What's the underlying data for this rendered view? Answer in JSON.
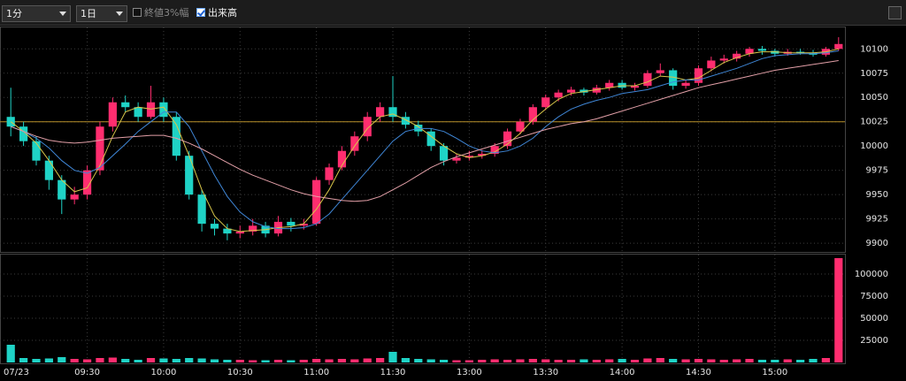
{
  "toolbar": {
    "interval": "1分",
    "range": "1日",
    "option_1": "終値3%幅",
    "option_2": "出来高"
  },
  "chart_data": [
    {
      "type": "candlestick",
      "categories": [
        "07/23",
        null,
        null,
        null,
        null,
        null,
        "09:30",
        null,
        null,
        null,
        null,
        null,
        "10:00",
        null,
        null,
        null,
        null,
        null,
        "10:30",
        null,
        null,
        null,
        null,
        null,
        "11:00",
        null,
        null,
        null,
        null,
        null,
        "11:30",
        null,
        null,
        null,
        null,
        null,
        "13:00",
        null,
        null,
        null,
        null,
        null,
        "13:30",
        null,
        null,
        null,
        null,
        null,
        "14:00",
        null,
        null,
        null,
        null,
        null,
        "14:30",
        null,
        null,
        null,
        null,
        null,
        "15:00",
        null,
        null,
        null,
        null,
        null
      ],
      "open": [
        10030,
        10020,
        10005,
        9985,
        9965,
        9945,
        9950,
        9975,
        10020,
        10045,
        10040,
        10030,
        10045,
        10030,
        9990,
        9950,
        9920,
        9915,
        9910,
        9912,
        9918,
        9910,
        9922,
        9918,
        9920,
        9965,
        9978,
        9995,
        10010,
        10030,
        10040,
        10030,
        10022,
        10015,
        10000,
        9985,
        9988,
        9990,
        9992,
        10000,
        10015,
        10025,
        10040,
        10050,
        10055,
        10058,
        10055,
        10060,
        10065,
        10060,
        10062,
        10075,
        10078,
        10062,
        10065,
        10080,
        10088,
        10090,
        10095,
        10100,
        10098,
        10095,
        10097,
        10096,
        10094,
        10100
      ],
      "high": [
        10060,
        10025,
        10010,
        9990,
        9970,
        9958,
        9980,
        10025,
        10050,
        10052,
        10045,
        10062,
        10050,
        10035,
        9995,
        9955,
        9925,
        9920,
        9918,
        9925,
        9922,
        9928,
        9926,
        9925,
        9968,
        9982,
        10000,
        10015,
        10035,
        10045,
        10072,
        10035,
        10026,
        10018,
        10003,
        9992,
        9995,
        9996,
        10003,
        10018,
        10028,
        10043,
        10053,
        10058,
        10061,
        10060,
        10063,
        10068,
        10068,
        10065,
        10078,
        10085,
        10080,
        10068,
        10083,
        10092,
        10094,
        10098,
        10102,
        10103,
        10100,
        10100,
        10100,
        10099,
        10102,
        10112
      ],
      "low": [
        10010,
        10000,
        9980,
        9955,
        9930,
        9940,
        9945,
        9970,
        10015,
        10035,
        10025,
        10028,
        10025,
        9985,
        9945,
        9912,
        9908,
        9903,
        9905,
        9908,
        9906,
        9907,
        9912,
        9914,
        9918,
        9960,
        9975,
        9990,
        10005,
        10025,
        10025,
        10018,
        10010,
        9995,
        9980,
        9982,
        9985,
        9987,
        9989,
        9997,
        10012,
        10022,
        10037,
        10046,
        10052,
        10052,
        10053,
        10057,
        10058,
        10057,
        10060,
        10072,
        10058,
        10059,
        10062,
        10077,
        10085,
        10087,
        10092,
        10094,
        10092,
        10093,
        10094,
        10092,
        10092,
        10098
      ],
      "close": [
        10020,
        10005,
        9985,
        9965,
        9945,
        9950,
        9975,
        10020,
        10045,
        10040,
        10030,
        10045,
        10030,
        9990,
        9950,
        9920,
        9915,
        9910,
        9912,
        9918,
        9910,
        9922,
        9918,
        9920,
        9965,
        9978,
        9995,
        10010,
        10030,
        10040,
        10030,
        10022,
        10015,
        10000,
        9985,
        9988,
        9990,
        9992,
        10000,
        10015,
        10025,
        10040,
        10050,
        10055,
        10058,
        10055,
        10060,
        10065,
        10060,
        10062,
        10075,
        10078,
        10062,
        10065,
        10080,
        10088,
        10090,
        10095,
        10100,
        10098,
        10095,
        10097,
        10096,
        10094,
        10100,
        10105
      ],
      "up_color": "#ff2d6f",
      "down_color": "#1fd3c6",
      "series": [
        {
          "color": "#d8c64a",
          "values": [
            10025,
            10015,
            10003,
            9985,
            9965,
            9953,
            9957,
            9980,
            10010,
            10035,
            10040,
            10038,
            10040,
            10022,
            9990,
            9955,
            9928,
            9915,
            9912,
            9913,
            9914,
            9916,
            9917,
            9920,
            9935,
            9955,
            9980,
            10000,
            10018,
            10030,
            10033,
            10027,
            10020,
            10010,
            10000,
            9992,
            9988,
            9990,
            9994,
            10002,
            10013,
            10027,
            10038,
            10048,
            10054,
            10056,
            10058,
            10060,
            10062,
            10062,
            10066,
            10072,
            10071,
            10068,
            10070,
            10078,
            10086,
            10091,
            10095,
            10097,
            10097,
            10096,
            10096,
            10096,
            10097,
            10100
          ]
        },
        {
          "color": "#3f86d6",
          "values": [
            10020,
            10015,
            10008,
            9998,
            9985,
            9975,
            9972,
            9978,
            9990,
            10002,
            10015,
            10025,
            10035,
            10035,
            10020,
            9995,
            9970,
            9948,
            9932,
            9922,
            9917,
            9915,
            9915,
            9916,
            9920,
            9930,
            9945,
            9960,
            9975,
            9990,
            10005,
            10015,
            10018,
            10018,
            10015,
            10008,
            10000,
            9995,
            9993,
            9995,
            10000,
            10008,
            10020,
            10030,
            10038,
            10043,
            10047,
            10050,
            10054,
            10056,
            10058,
            10062,
            10066,
            10068,
            10068,
            10072,
            10076,
            10080,
            10085,
            10090,
            10093,
            10094,
            10095,
            10095,
            10096,
            10098
          ]
        },
        {
          "color": "#e3a0a8",
          "values": [
            10020,
            10015,
            10010,
            10006,
            10004,
            10003,
            10004,
            10006,
            10008,
            10009,
            10010,
            10011,
            10011,
            10008,
            10003,
            9997,
            9990,
            9983,
            9976,
            9970,
            9965,
            9960,
            9955,
            9951,
            9948,
            9946,
            9944,
            9943,
            9944,
            9948,
            9955,
            9962,
            9970,
            9978,
            9984,
            9989,
            9993,
            9997,
            10001,
            10005,
            10009,
            10013,
            10017,
            10020,
            10023,
            10025,
            10028,
            10032,
            10036,
            10040,
            10044,
            10048,
            10052,
            10056,
            10060,
            10063,
            10066,
            10069,
            10072,
            10075,
            10078,
            10080,
            10082,
            10084,
            10086,
            10088
          ]
        }
      ],
      "reference_line": {
        "value": 10025,
        "color": "#b8912a"
      },
      "ylim": [
        9891,
        10123
      ],
      "yticks": [
        9900,
        9925,
        9950,
        9975,
        10000,
        10025,
        10050,
        10075,
        10100
      ],
      "grid": true
    },
    {
      "type": "bar",
      "values": [
        20000,
        5000,
        4000,
        4500,
        6000,
        4000,
        3500,
        5000,
        5500,
        4000,
        3000,
        5000,
        4500,
        4000,
        5000,
        4500,
        3500,
        3000,
        3000,
        2500,
        2500,
        3000,
        2500,
        3000,
        4000,
        3500,
        4000,
        3500,
        4500,
        5000,
        12000,
        5000,
        4000,
        3500,
        3000,
        2500,
        2500,
        3000,
        3500,
        3000,
        3500,
        4000,
        3500,
        3000,
        3000,
        3500,
        3000,
        3500,
        4000,
        3000,
        4500,
        5000,
        4000,
        3500,
        4000,
        3500,
        3000,
        3500,
        4000,
        3000,
        3000,
        3500,
        3000,
        4000,
        5000,
        118000
      ],
      "ylim": [
        0,
        122000
      ],
      "yticks": [
        25000,
        50000,
        75000,
        100000
      ],
      "grid": true
    }
  ]
}
